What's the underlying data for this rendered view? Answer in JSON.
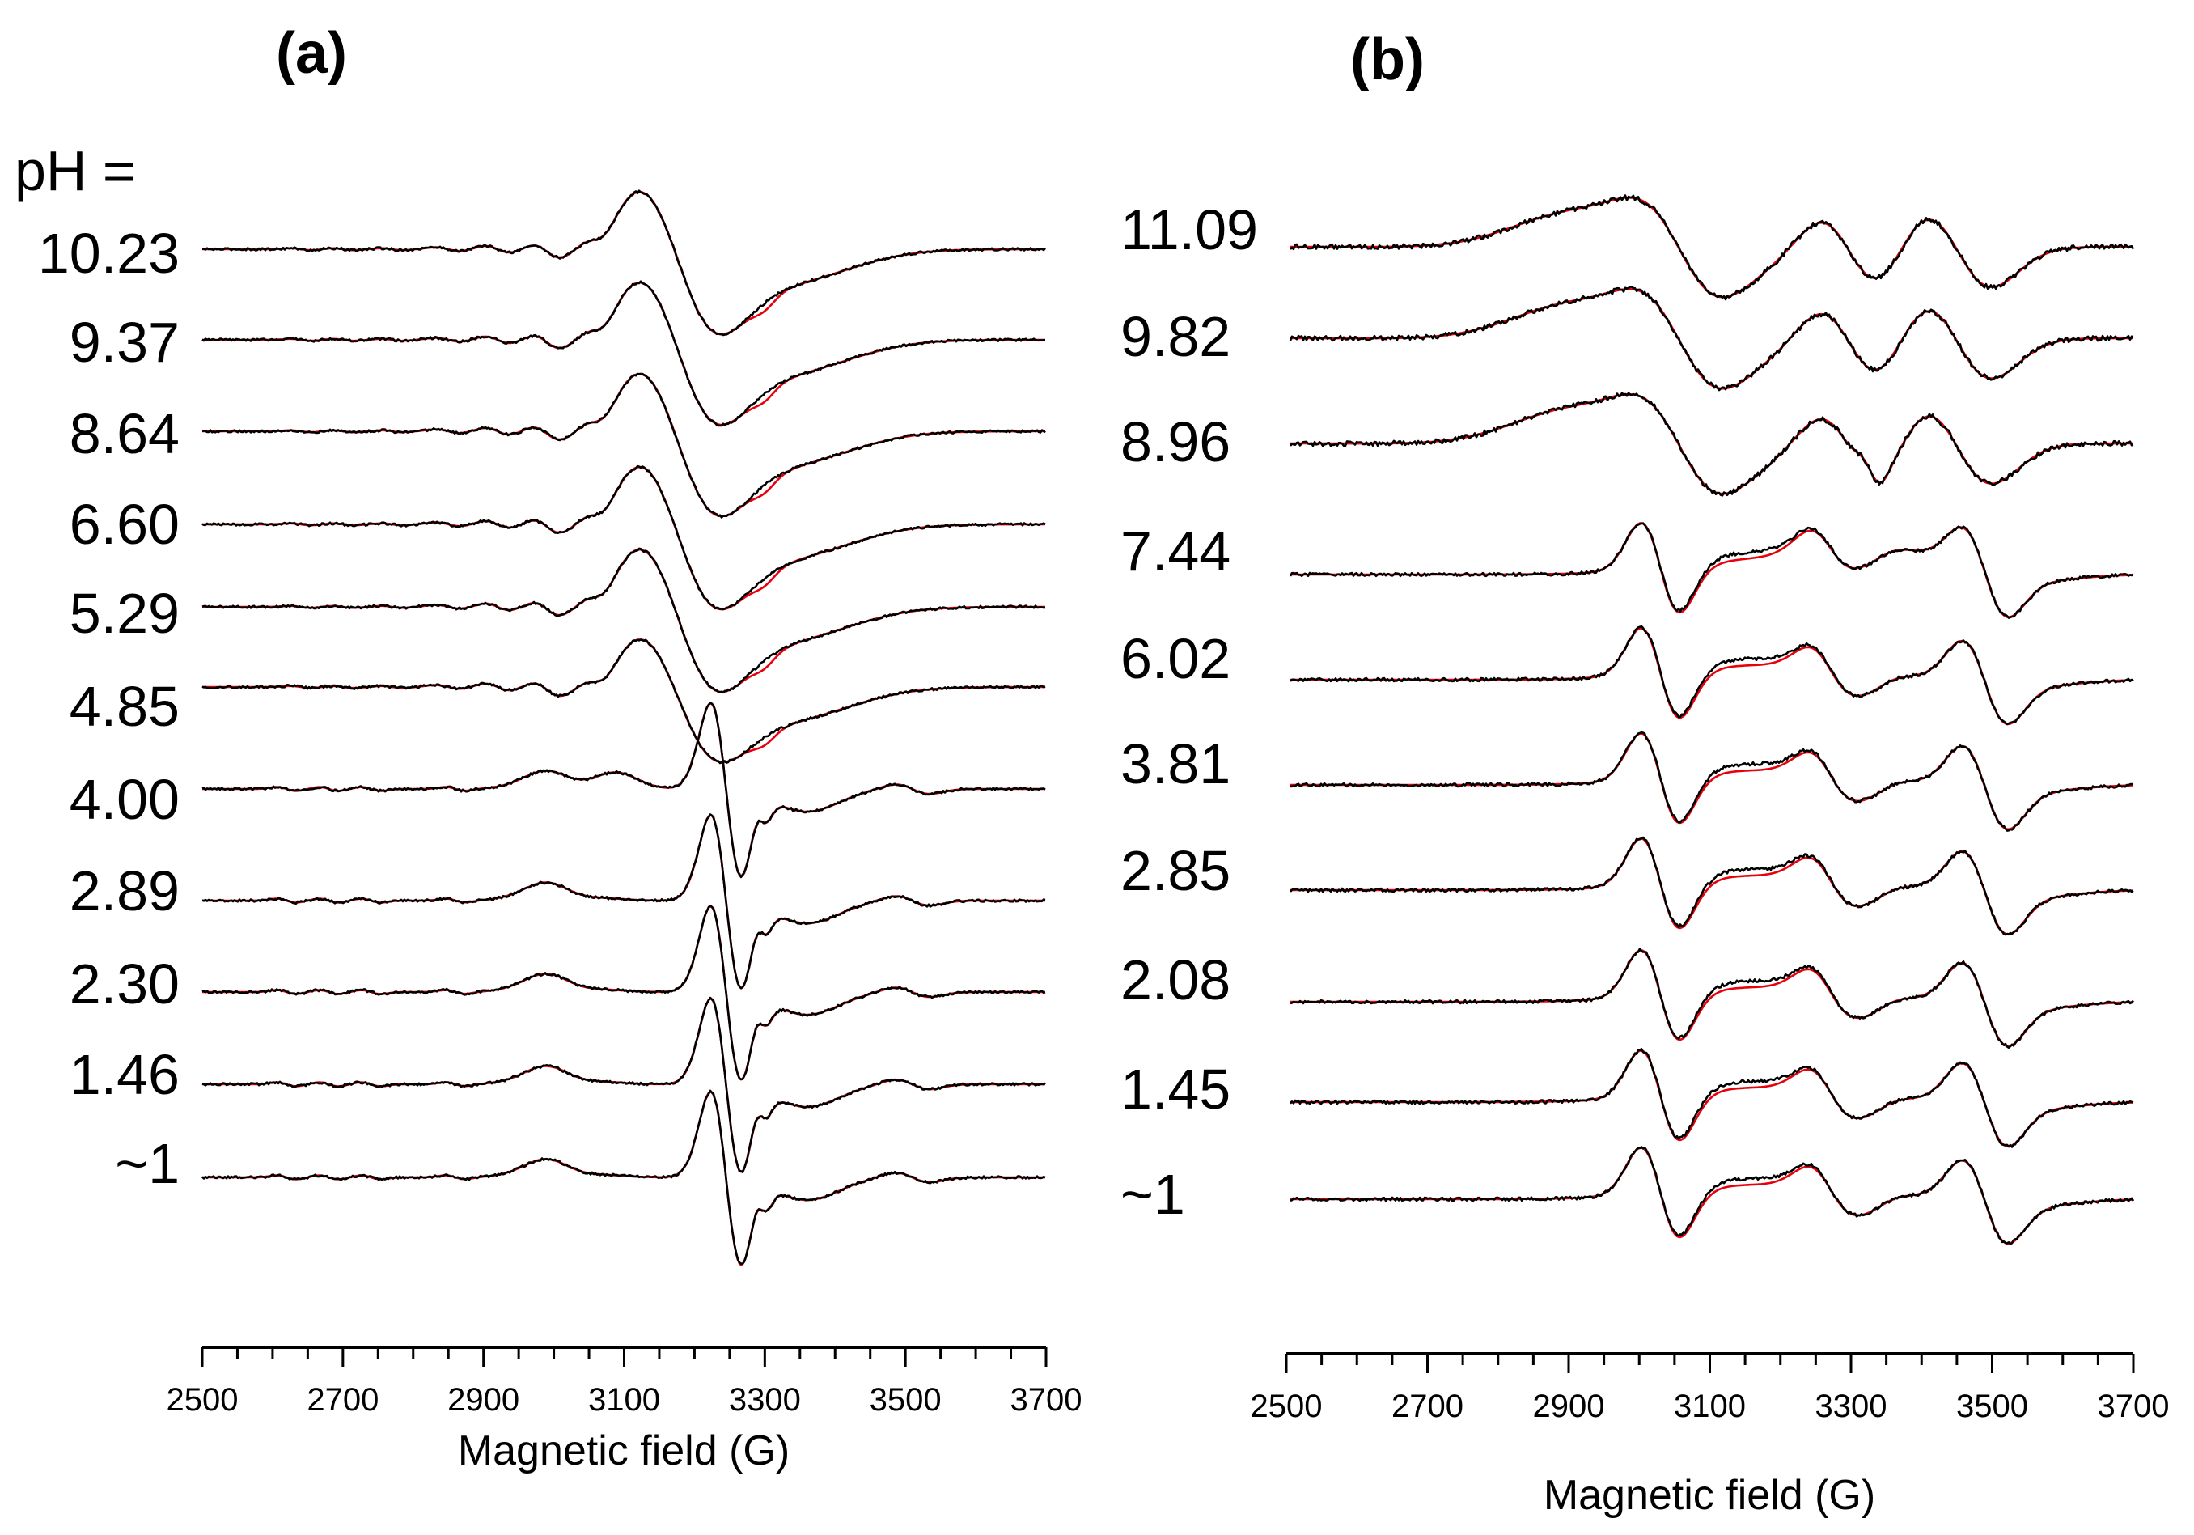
{
  "chart_data": [
    {
      "type": "line",
      "panel_label": "(a)",
      "header_label": "pH =",
      "xlabel": "Magnetic field (G)",
      "ylabel": "",
      "xlim": [
        2500,
        3700
      ],
      "xticks": [
        2500,
        2700,
        2900,
        3100,
        3300,
        3500,
        3700
      ],
      "minor_step": 50,
      "grid": false,
      "series_colors": {
        "experimental": "#000000",
        "simulated": "#e8000b"
      },
      "spectrum_kind": "axial",
      "series": [
        {
          "name": "10.23"
        },
        {
          "name": "9.37"
        },
        {
          "name": "8.64"
        },
        {
          "name": "6.60"
        },
        {
          "name": "5.29"
        },
        {
          "name": "4.85"
        },
        {
          "name": "4.00"
        },
        {
          "name": "2.89"
        },
        {
          "name": "2.30"
        },
        {
          "name": "1.46"
        },
        {
          "name": "~1"
        }
      ]
    },
    {
      "type": "line",
      "panel_label": "(b)",
      "xlabel": "Magnetic field (G)",
      "ylabel": "",
      "xlim": [
        2500,
        3700
      ],
      "xticks": [
        2500,
        2700,
        2900,
        3100,
        3300,
        3500,
        3700
      ],
      "minor_step": 50,
      "grid": false,
      "series_colors": {
        "experimental": "#000000",
        "simulated": "#e8000b"
      },
      "spectrum_kind": "triplet",
      "series": [
        {
          "name": "11.09"
        },
        {
          "name": "9.82"
        },
        {
          "name": "8.96"
        },
        {
          "name": "7.44"
        },
        {
          "name": "6.02"
        },
        {
          "name": "3.81"
        },
        {
          "name": "2.85"
        },
        {
          "name": "2.08"
        },
        {
          "name": "1.45"
        },
        {
          "name": "~1"
        }
      ]
    }
  ]
}
